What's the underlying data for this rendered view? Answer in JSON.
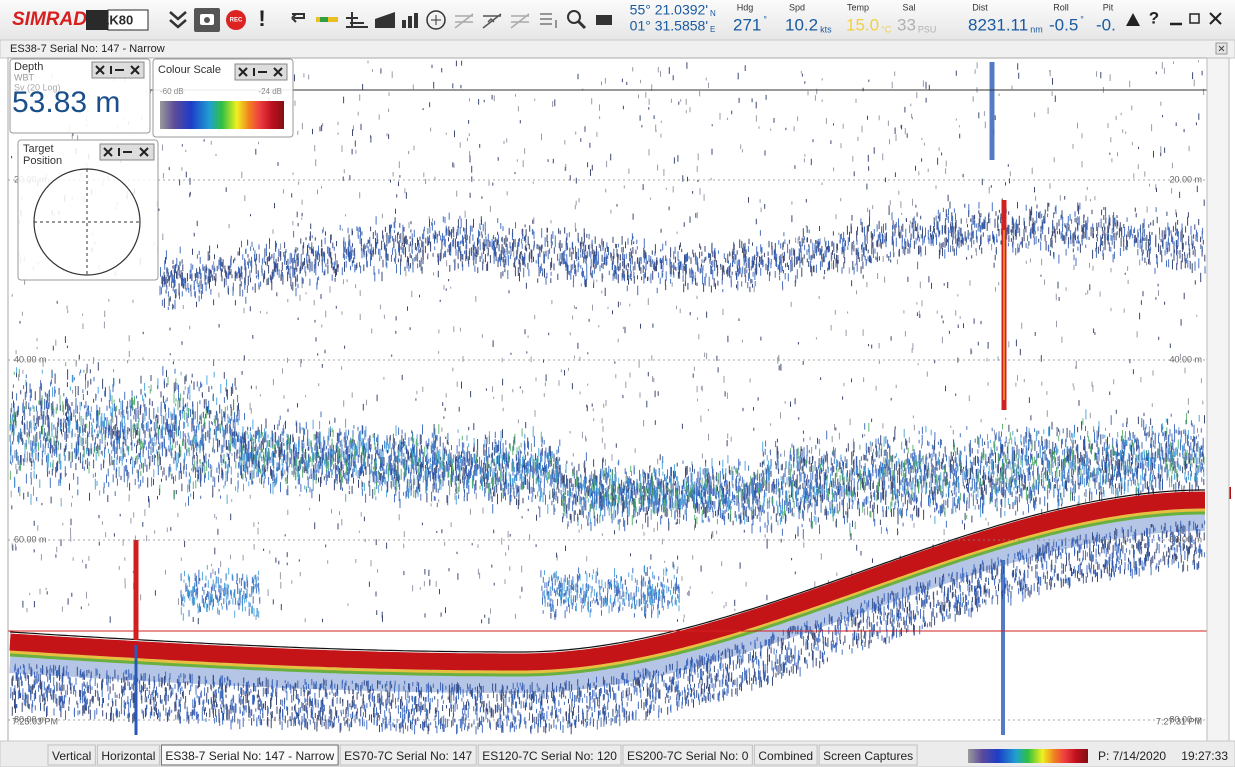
{
  "toolbar": {
    "brand": "SIMRAD",
    "product": "EK80",
    "rec": "REC",
    "alert": "!",
    "help": "?"
  },
  "navigation": {
    "latitude": "55° 21.0392'",
    "lat_hemisphere": "N",
    "longitude": "01° 31.5858'",
    "lon_hemisphere": "E",
    "fields": [
      {
        "label": "Hdg",
        "value": "271",
        "unit": "°"
      },
      {
        "label": "Spd",
        "value": "10.2",
        "unit": "kts"
      },
      {
        "label": "Temp",
        "value": "15.0",
        "unit": "°C"
      },
      {
        "label": "Sal",
        "value": "33",
        "unit": "PSU"
      },
      {
        "label": "Dist",
        "value": "8231.11",
        "unit": "nm"
      },
      {
        "label": "Roll",
        "value": "-0.5",
        "unit": "°"
      },
      {
        "label": "Pit",
        "value": "-0."
      }
    ]
  },
  "window": {
    "title": "ES38-7 Serial No: 147 - Narrow"
  },
  "depth_panel": {
    "title": "Depth",
    "mode": "WBT",
    "measure": "Sv (20 Log)",
    "value": "53.83 m"
  },
  "colour_scale": {
    "title": "Colour Scale",
    "min_label": "-60 dB",
    "max_label": "-24 dB"
  },
  "target_position": {
    "title_lines": [
      "Target",
      "Position"
    ]
  },
  "echogram": {
    "depth_labels": [
      "20.00 m",
      "40.00 m",
      "60.00 m",
      "80.00 m"
    ],
    "start_time": "7:25:03 PM",
    "end_time": "7:27:31 PM"
  },
  "tabs": [
    {
      "label": "Vertical",
      "active": false
    },
    {
      "label": "Horizontal",
      "active": false
    },
    {
      "label": "ES38-7 Serial No: 147 - Narrow",
      "active": true
    },
    {
      "label": "ES70-7C Serial No: 147",
      "active": false
    },
    {
      "label": "ES120-7C Serial No: 120",
      "active": false
    },
    {
      "label": "ES200-7C Serial No: 0",
      "active": false
    },
    {
      "label": "Combined",
      "active": false
    },
    {
      "label": "Screen Captures",
      "active": false
    }
  ],
  "status": {
    "ping": "P: 7/14/2020",
    "time": "19:27:33"
  }
}
